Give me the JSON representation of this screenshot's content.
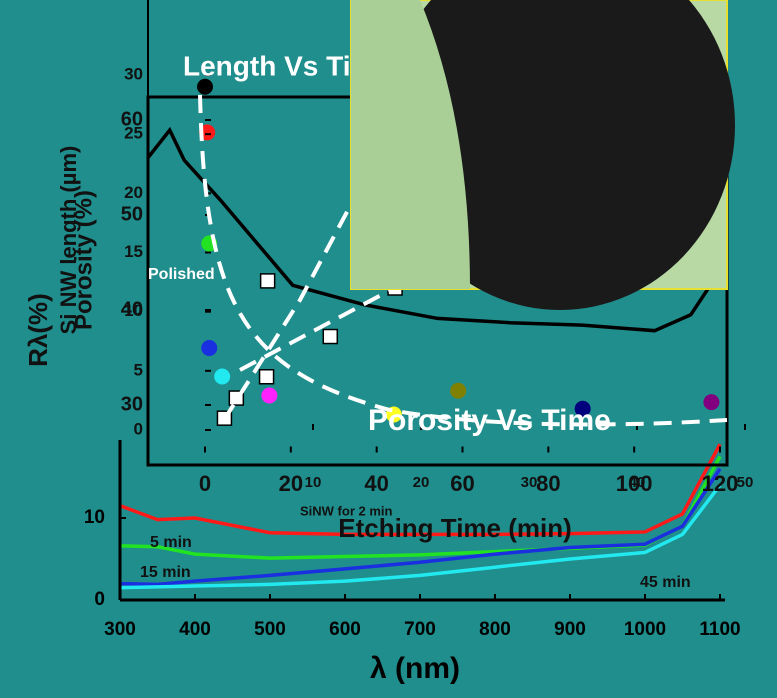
{
  "chart_data": [
    {
      "type": "line",
      "x_label": "λ (nm)",
      "y_label": "Rλ(%)",
      "x": [
        300,
        350,
        400,
        500,
        600,
        700,
        800,
        900,
        1000,
        1050,
        1100
      ],
      "series": [
        {
          "name": "SiNW for 2 min",
          "color": "#ff1a1a",
          "values": [
            11.5,
            9.8,
            10,
            8.2,
            8,
            8,
            8,
            8.1,
            8.3,
            10.5,
            19
          ]
        },
        {
          "name": "5 min",
          "color": "#22e322",
          "values": [
            6.6,
            6.5,
            5.6,
            5.1,
            5.3,
            5.5,
            5.9,
            6.3,
            6.7,
            9,
            17.5
          ]
        },
        {
          "name": "15 min",
          "color": "#1a2fe0",
          "values": [
            2.0,
            1.9,
            2.3,
            3.0,
            3.8,
            4.6,
            5.6,
            6.4,
            6.8,
            9,
            16
          ]
        },
        {
          "name": "45 min",
          "color": "#22e8f0",
          "values": [
            1.5,
            1.6,
            1.7,
            1.9,
            2.3,
            3.0,
            4.0,
            5.0,
            5.8,
            8,
            14
          ]
        }
      ],
      "xlim": [
        300,
        1100
      ],
      "ylim": [
        0,
        25
      ],
      "xticks": [
        300,
        400,
        500,
        600,
        700,
        800,
        900,
        1000,
        1100
      ],
      "yticks": [
        0,
        10
      ]
    },
    {
      "type": "line",
      "x": [
        300,
        330,
        350,
        400,
        500,
        600,
        700,
        800,
        900,
        1000,
        1050,
        1100
      ],
      "series": [
        {
          "name": "Polished",
          "color": "#000000",
          "values": [
            50.1,
            54.6,
            49.7,
            43.2,
            29.3,
            26.1,
            23.9,
            23.2,
            22.8,
            21.9,
            24.5,
            33.4
          ]
        }
      ],
      "xlim": [
        300,
        1100
      ],
      "ylim": [
        0,
        60
      ]
    },
    {
      "type": "scatter",
      "title": "Porosity Vs Time",
      "x_label": "Etching Time (min)",
      "y_label": "Porosity (%)",
      "x": [
        0,
        0.5,
        1,
        1,
        4,
        15,
        44,
        59,
        88,
        118
      ],
      "values": [
        63.5,
        58.7,
        47,
        36,
        33,
        31,
        29,
        31.5,
        29.6,
        30.3
      ],
      "colors": [
        "#000000",
        "#ff1a1a",
        "#22e322",
        "#1a2fe0",
        "#22e8f0",
        "#ff22ff",
        "#ffff22",
        "#808000",
        "#00007f",
        "#800080"
      ],
      "xlim": [
        0,
        120
      ],
      "ylim": [
        25,
        65
      ],
      "xticks": [
        0,
        20,
        40,
        60,
        80,
        100,
        120
      ],
      "yticks": [
        30,
        40,
        50,
        60
      ]
    },
    {
      "type": "scatter",
      "title": "Length Vs Time",
      "y_label": "Si NW length (µm)",
      "x": [
        1.8,
        2.9,
        5.7,
        5.8,
        11.6,
        17.6
      ],
      "values": [
        1.0,
        2.7,
        4.5,
        12.6,
        7.9,
        12.0
      ],
      "colors": [
        "#ffffff",
        "#ffffff",
        "#ffffff",
        "#ffffff",
        "#ffffff",
        "#ffffff"
      ],
      "xlim": [
        0,
        50
      ],
      "ylim": [
        0,
        30
      ],
      "xticks": [
        10,
        20,
        30,
        40,
        50
      ],
      "yticks": [
        0,
        5,
        10,
        15,
        20,
        25,
        30
      ]
    }
  ]
}
